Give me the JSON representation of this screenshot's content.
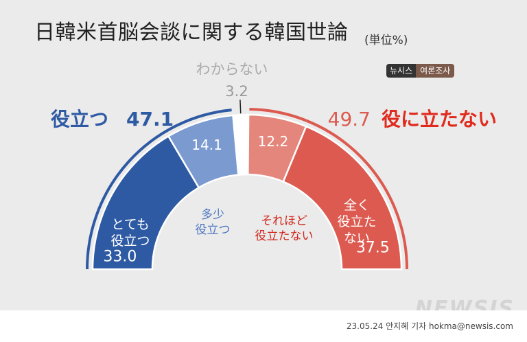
{
  "title": "日韓米首脳会談に関する韓国世論",
  "unit": "(単位%)",
  "source_badge": [
    "뉴시스",
    "여론조사"
  ],
  "footer_credit": "23.05.24 안지혜 기자 hokma@newsis.com",
  "watermark": "NEWSIS",
  "colors": {
    "helpful_dark": "#2e5aa4",
    "helpful_light": "#7b9bd0",
    "unknown": "#ffffff",
    "not_helpful_light": "#e5867c",
    "not_helpful_dark": "#dc5a4f",
    "helpful_text": "#2e5aa4",
    "not_helpful_text": "#e02a1c",
    "unknown_text": "#aaaaaa"
  },
  "chart_data": {
    "type": "pie",
    "layout": "semicircle",
    "title": "日韓米首脳会談に関する韓国世論",
    "unit": "(単位%)",
    "groups": [
      {
        "label": "役立つ",
        "value": 47.1
      },
      {
        "label": "わからない",
        "value": 3.2
      },
      {
        "label": "役に立たない",
        "value": 49.7
      }
    ],
    "slices": [
      {
        "label": "とても役立つ",
        "label_lines": [
          "とても",
          "役立つ"
        ],
        "value": 33.0,
        "color": "#2e5aa4"
      },
      {
        "label": "多少役立つ",
        "label_lines": [
          "多少",
          "役立つ"
        ],
        "value": 14.1,
        "color": "#7b9bd0"
      },
      {
        "label": "わからない",
        "label_lines": [],
        "value": 3.2,
        "color": "#ffffff"
      },
      {
        "label": "それほど役立たない",
        "label_lines": [
          "それほど",
          "役立たない"
        ],
        "value": 12.2,
        "color": "#e5867c"
      },
      {
        "label": "全く役立たない",
        "label_lines": [
          "全く",
          "役立た",
          "ない"
        ],
        "value": 37.5,
        "color": "#dc5a4f"
      }
    ]
  }
}
